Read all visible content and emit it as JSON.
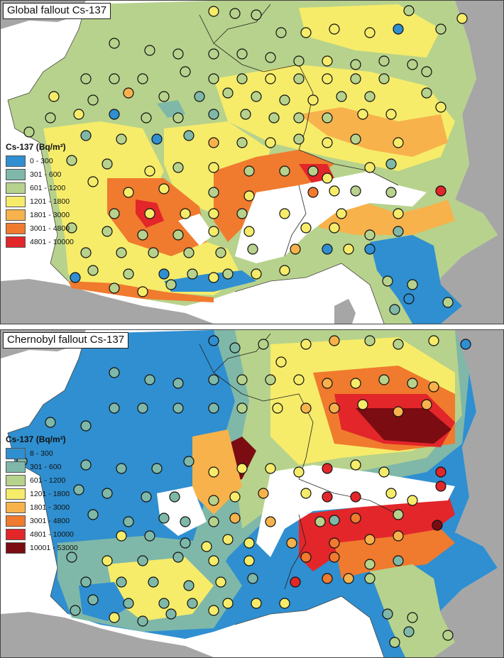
{
  "figure": {
    "panels": [
      {
        "id": "global",
        "title": "Global fallout Cs-137",
        "legend": {
          "title": "Cs-137 (Bq/m²)",
          "classes": [
            {
              "label": "0 - 300",
              "color": "#2f8fd0"
            },
            {
              "label": "301 - 600",
              "color": "#7fb8a8"
            },
            {
              "label": "601 - 1200",
              "color": "#b7d28c"
            },
            {
              "label": "1201 - 1800",
              "color": "#f6ec6a"
            },
            {
              "label": "1801 - 3000",
              "color": "#f7b24c"
            },
            {
              "label": "3001 - 4800",
              "color": "#f07a2e"
            },
            {
              "label": "4801 - 10000",
              "color": "#e2262a"
            }
          ]
        }
      },
      {
        "id": "chernobyl",
        "title": "Chernobyl fallout Cs-137",
        "legend": {
          "title": "Cs-137 (Bq/m²)",
          "classes": [
            {
              "label": "8 - 300",
              "color": "#2f8fd0"
            },
            {
              "label": "301 - 600",
              "color": "#7fb8a8"
            },
            {
              "label": "601 - 1200",
              "color": "#b7d28c"
            },
            {
              "label": "1201 - 1800",
              "color": "#f6ec6a"
            },
            {
              "label": "1801 - 3000",
              "color": "#f7b24c"
            },
            {
              "label": "3001 - 4800",
              "color": "#f07a2e"
            },
            {
              "label": "4801 - 10000",
              "color": "#e2262a"
            },
            {
              "label": "10001 - 53000",
              "color": "#7a0c12"
            }
          ]
        }
      }
    ],
    "colors": {
      "sea": "#ffffff",
      "foreign_land": "#a6a6a6",
      "border_line": "#222222"
    }
  }
}
